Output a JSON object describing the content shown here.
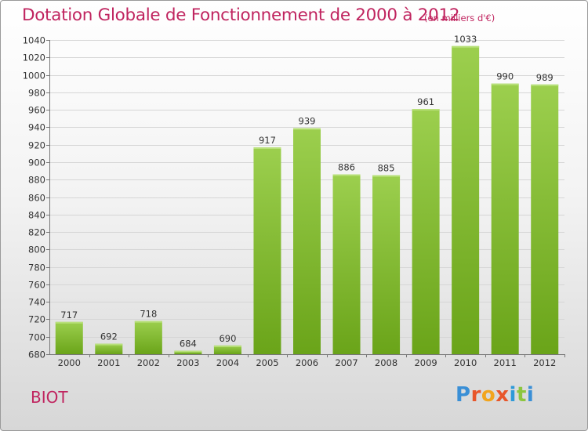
{
  "title": "Dotation Globale de Fonctionnement de 2000 à 2012",
  "unit_label": "(en milliers d'€)",
  "commune": "BIOT",
  "logo": {
    "letters": [
      "P",
      "r",
      "o",
      "x",
      "i",
      "t",
      "i"
    ],
    "colors": [
      "#3a8fd6",
      "#e8562a",
      "#f2a51e",
      "#e8562a",
      "#2e9ad8",
      "#8cc63f",
      "#3a8fd6"
    ]
  },
  "colors": {
    "bar_light": "#9ccf4e",
    "bar_dark": "#6aa419",
    "accent": "#c0245f"
  },
  "chart_data": {
    "type": "bar",
    "title": "Dotation Globale de Fonctionnement de 2000 à 2012",
    "subtitle": "(en milliers d'€)",
    "xlabel": "",
    "ylabel": "",
    "categories": [
      "2000",
      "2001",
      "2002",
      "2003",
      "2004",
      "2005",
      "2006",
      "2007",
      "2008",
      "2009",
      "2010",
      "2011",
      "2012"
    ],
    "values": [
      717,
      692,
      718,
      684,
      690,
      917,
      939,
      886,
      885,
      961,
      1033,
      990,
      989
    ],
    "ylim": [
      680,
      1040
    ],
    "yticks": [
      680,
      700,
      720,
      740,
      760,
      780,
      800,
      820,
      840,
      860,
      880,
      900,
      920,
      940,
      960,
      980,
      1000,
      1020,
      1040
    ],
    "grid": true,
    "legend": "none"
  }
}
